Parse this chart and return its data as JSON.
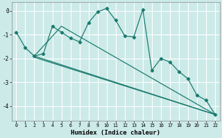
{
  "xlabel": "Humidex (Indice chaleur)",
  "bg_color": "#cceae8",
  "grid_color": "#ffffff",
  "line_color": "#1a7a6e",
  "xlim": [
    -0.5,
    22.5
  ],
  "ylim": [
    -4.6,
    0.35
  ],
  "yticks": [
    0,
    -1,
    -2,
    -3,
    -4
  ],
  "xticks": [
    0,
    1,
    2,
    3,
    4,
    5,
    6,
    7,
    8,
    9,
    10,
    11,
    12,
    13,
    14,
    15,
    16,
    17,
    18,
    19,
    20,
    21,
    22
  ],
  "zigzag_x": [
    0,
    1,
    2,
    3,
    4,
    5,
    6,
    7,
    8,
    9,
    10,
    11,
    12,
    13,
    14,
    15,
    16,
    17,
    18,
    19,
    20,
    21,
    22
  ],
  "zigzag_y": [
    -0.9,
    -1.55,
    -1.9,
    -1.8,
    -0.65,
    -0.9,
    -1.15,
    -1.3,
    -0.5,
    -0.05,
    0.1,
    -0.4,
    -1.05,
    -1.1,
    0.05,
    -2.5,
    -2.0,
    -2.15,
    -2.55,
    -2.85,
    -3.55,
    -3.75,
    -4.35
  ],
  "line1_x": [
    2,
    22
  ],
  "line1_y": [
    -1.9,
    -4.35
  ],
  "line2_x": [
    2,
    22
  ],
  "line2_y": [
    -1.95,
    -4.35
  ],
  "line3_x": [
    2,
    5,
    22
  ],
  "line3_y": [
    -1.9,
    -0.65,
    -4.35
  ]
}
